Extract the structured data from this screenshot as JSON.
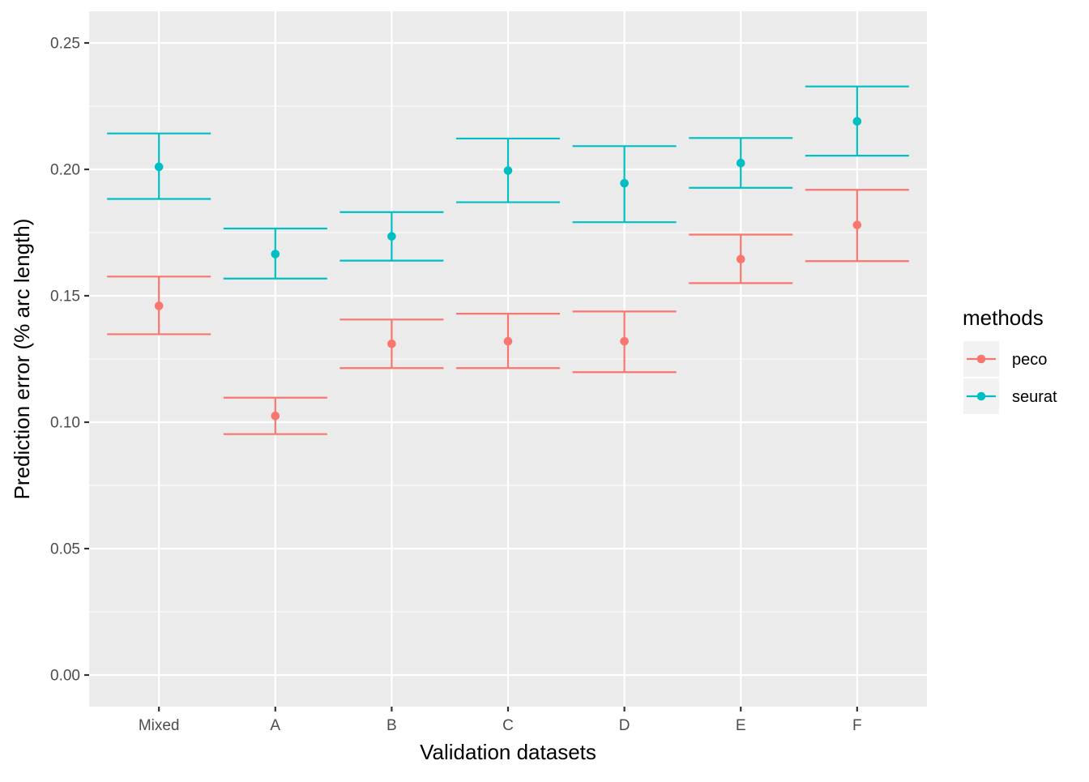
{
  "chart_data": {
    "type": "errorbar",
    "xlabel": "Validation datasets",
    "ylabel": "Prediction error (% arc length)",
    "categories": [
      "Mixed",
      "A",
      "B",
      "C",
      "D",
      "E",
      "F"
    ],
    "ylim": [
      -0.0125,
      0.2625
    ],
    "yticks": [
      0.0,
      0.05,
      0.1,
      0.15,
      0.2,
      0.25
    ],
    "ytick_labels": [
      "0.00",
      "0.05",
      "0.10",
      "0.15",
      "0.20",
      "0.25"
    ],
    "grid": true,
    "legend": {
      "title": "methods",
      "position": "right"
    },
    "series": [
      {
        "name": "peco",
        "color": "#F8766D",
        "values": [
          0.146,
          0.1025,
          0.131,
          0.132,
          0.132,
          0.1645,
          0.178
        ],
        "lower": [
          0.1348,
          0.0953,
          0.1214,
          0.1214,
          0.1198,
          0.155,
          0.1637
        ],
        "upper": [
          0.1576,
          0.1097,
          0.1406,
          0.1429,
          0.1438,
          0.1742,
          0.1919
        ]
      },
      {
        "name": "seurat",
        "color": "#00BFC4",
        "values": [
          0.201,
          0.1665,
          0.1735,
          0.1995,
          0.1945,
          0.2025,
          0.219
        ],
        "lower": [
          0.1883,
          0.1568,
          0.1639,
          0.187,
          0.1791,
          0.1927,
          0.2054
        ],
        "upper": [
          0.2142,
          0.1766,
          0.1831,
          0.2122,
          0.2092,
          0.2124,
          0.2328
        ]
      }
    ]
  }
}
